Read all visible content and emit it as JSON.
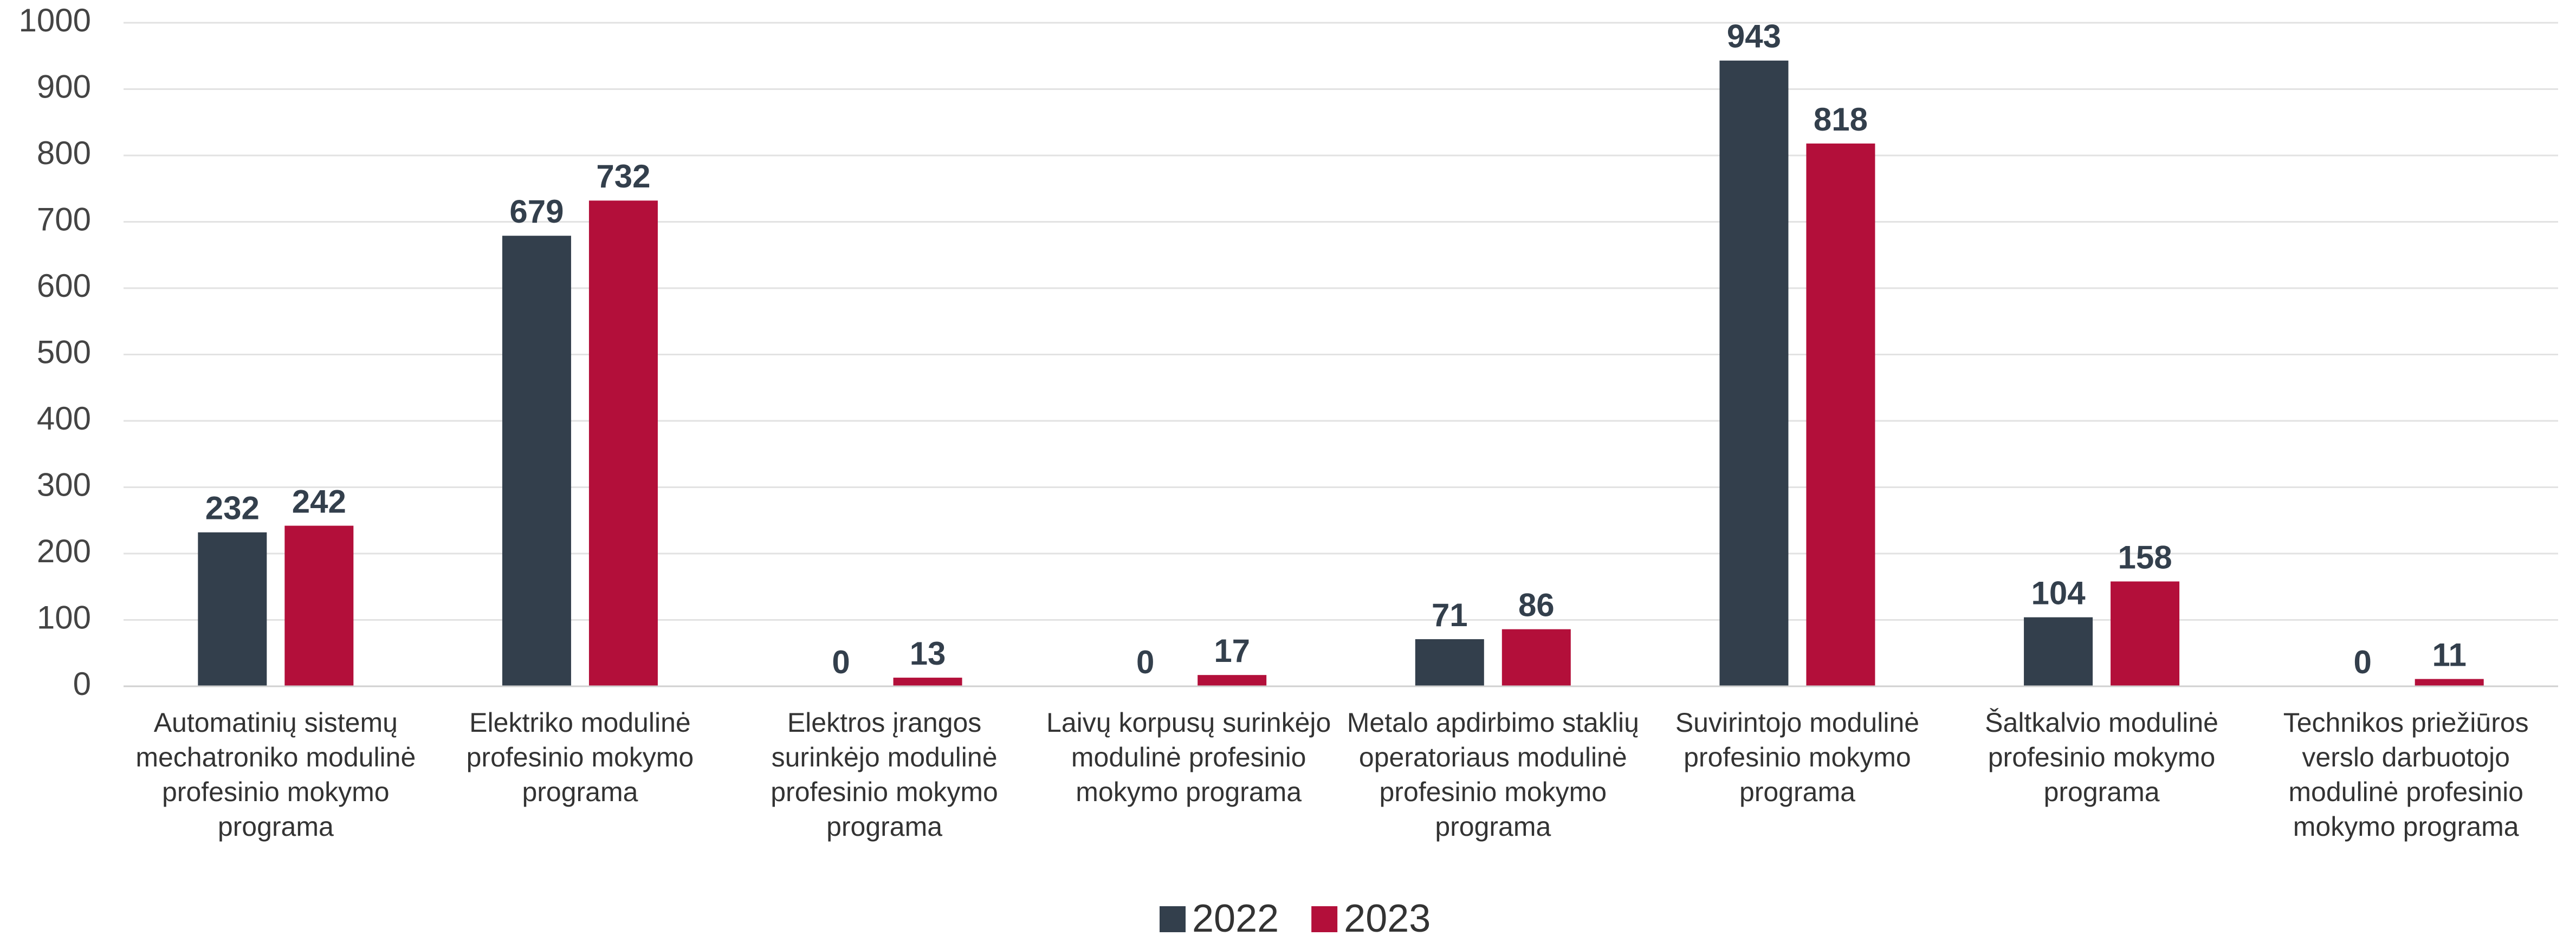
{
  "chart_data": {
    "type": "bar",
    "categories": [
      "Automatinių sistemų mechatroniko modulinė profesinio mokymo programa",
      "Elektriko modulinė profesinio mokymo programa",
      "Elektros įrangos surinkėjo modulinė profesinio mokymo programa",
      "Laivų korpusų surinkėjo modulinė profesinio mokymo programa",
      "Metalo apdirbimo staklių operatoriaus modulinė profesinio mokymo programa",
      "Suvirintojo modulinė profesinio mokymo programa",
      "Šaltkalvio modulinė profesinio mokymo programa",
      "Technikos priežiūros verslo darbuotojo modulinė profesinio mokymo programa"
    ],
    "series": [
      {
        "name": "2022",
        "color": "#333f4c",
        "values": [
          232,
          679,
          0,
          0,
          71,
          943,
          104,
          0
        ]
      },
      {
        "name": "2023",
        "color": "#b30f3a",
        "values": [
          242,
          732,
          13,
          17,
          86,
          818,
          158,
          11
        ]
      }
    ],
    "ylim": [
      0,
      1000
    ],
    "yticks": [
      0,
      100,
      200,
      300,
      400,
      500,
      600,
      700,
      800,
      900,
      1000
    ],
    "grid": true,
    "legend": "bottom"
  }
}
